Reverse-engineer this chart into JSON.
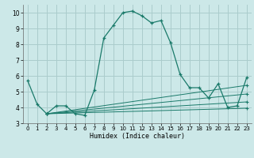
{
  "title": "",
  "xlabel": "Humidex (Indice chaleur)",
  "bg_color": "#cce8e8",
  "grid_color": "#aacccc",
  "line_color": "#1a7a6a",
  "xlim": [
    -0.5,
    23.5
  ],
  "ylim": [
    3,
    10.5
  ],
  "xticks": [
    0,
    1,
    2,
    3,
    4,
    5,
    6,
    7,
    8,
    9,
    10,
    11,
    12,
    13,
    14,
    15,
    16,
    17,
    18,
    19,
    20,
    21,
    22,
    23
  ],
  "yticks": [
    3,
    4,
    5,
    6,
    7,
    8,
    9,
    10
  ],
  "series": [
    [
      0,
      5.7
    ],
    [
      1,
      4.2
    ],
    [
      2,
      3.6
    ],
    [
      3,
      4.1
    ],
    [
      4,
      4.1
    ],
    [
      5,
      3.6
    ],
    [
      6,
      3.5
    ],
    [
      7,
      5.1
    ],
    [
      8,
      8.4
    ],
    [
      9,
      9.2
    ],
    [
      10,
      10.0
    ],
    [
      11,
      10.1
    ],
    [
      12,
      9.8
    ],
    [
      13,
      9.35
    ],
    [
      14,
      9.5
    ],
    [
      15,
      8.1
    ],
    [
      16,
      6.1
    ],
    [
      17,
      5.25
    ],
    [
      18,
      5.25
    ],
    [
      19,
      4.6
    ],
    [
      20,
      5.5
    ],
    [
      21,
      4.0
    ],
    [
      22,
      4.1
    ],
    [
      23,
      5.9
    ]
  ],
  "extra_lines": [
    [
      [
        2,
        23
      ],
      [
        3.6,
        5.4
      ]
    ],
    [
      [
        2,
        23
      ],
      [
        3.6,
        4.85
      ]
    ],
    [
      [
        2,
        23
      ],
      [
        3.6,
        4.35
      ]
    ],
    [
      [
        2,
        23
      ],
      [
        3.6,
        3.95
      ]
    ]
  ]
}
